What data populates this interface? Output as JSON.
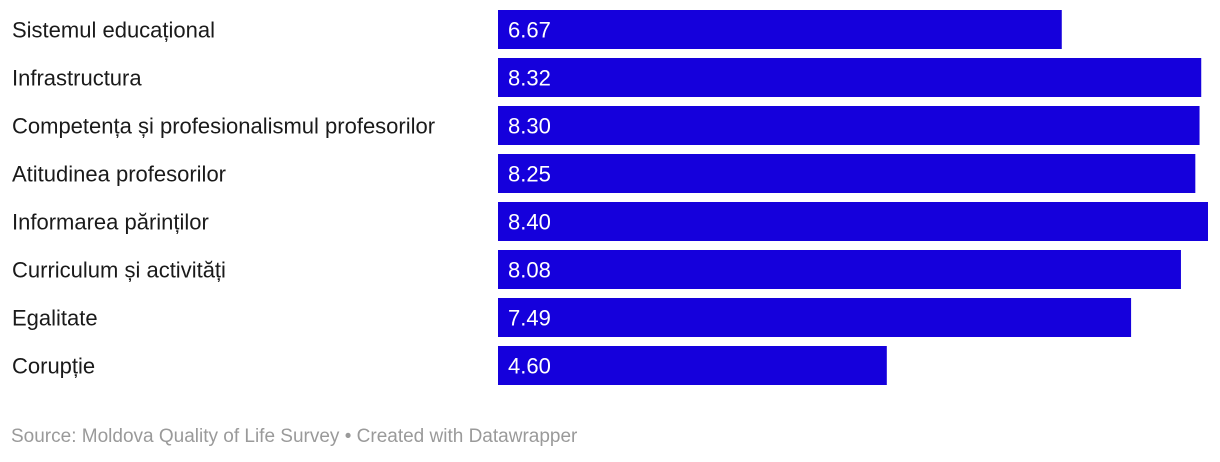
{
  "chart_data": {
    "type": "bar",
    "orientation": "horizontal",
    "categories": [
      "Sistemul educațional",
      "Infrastructura",
      "Competența și profesionalismul profesorilor",
      "Atitudinea profesorilor",
      "Informarea părinților",
      "Curriculum și activități",
      "Egalitate",
      "Corupție"
    ],
    "values": [
      6.67,
      8.32,
      8.3,
      8.25,
      8.4,
      8.08,
      7.49,
      4.6
    ],
    "value_labels": [
      "6.67",
      "8.32",
      "8.30",
      "8.25",
      "8.40",
      "8.08",
      "7.49",
      "4.60"
    ],
    "xlim": [
      0,
      8.4
    ],
    "bar_color": "#1500dc",
    "grid": false,
    "title": "",
    "xlabel": "",
    "ylabel": ""
  },
  "footer": {
    "source_text": "Source: Moldova Quality of Life Survey • Created with Datawrapper"
  }
}
